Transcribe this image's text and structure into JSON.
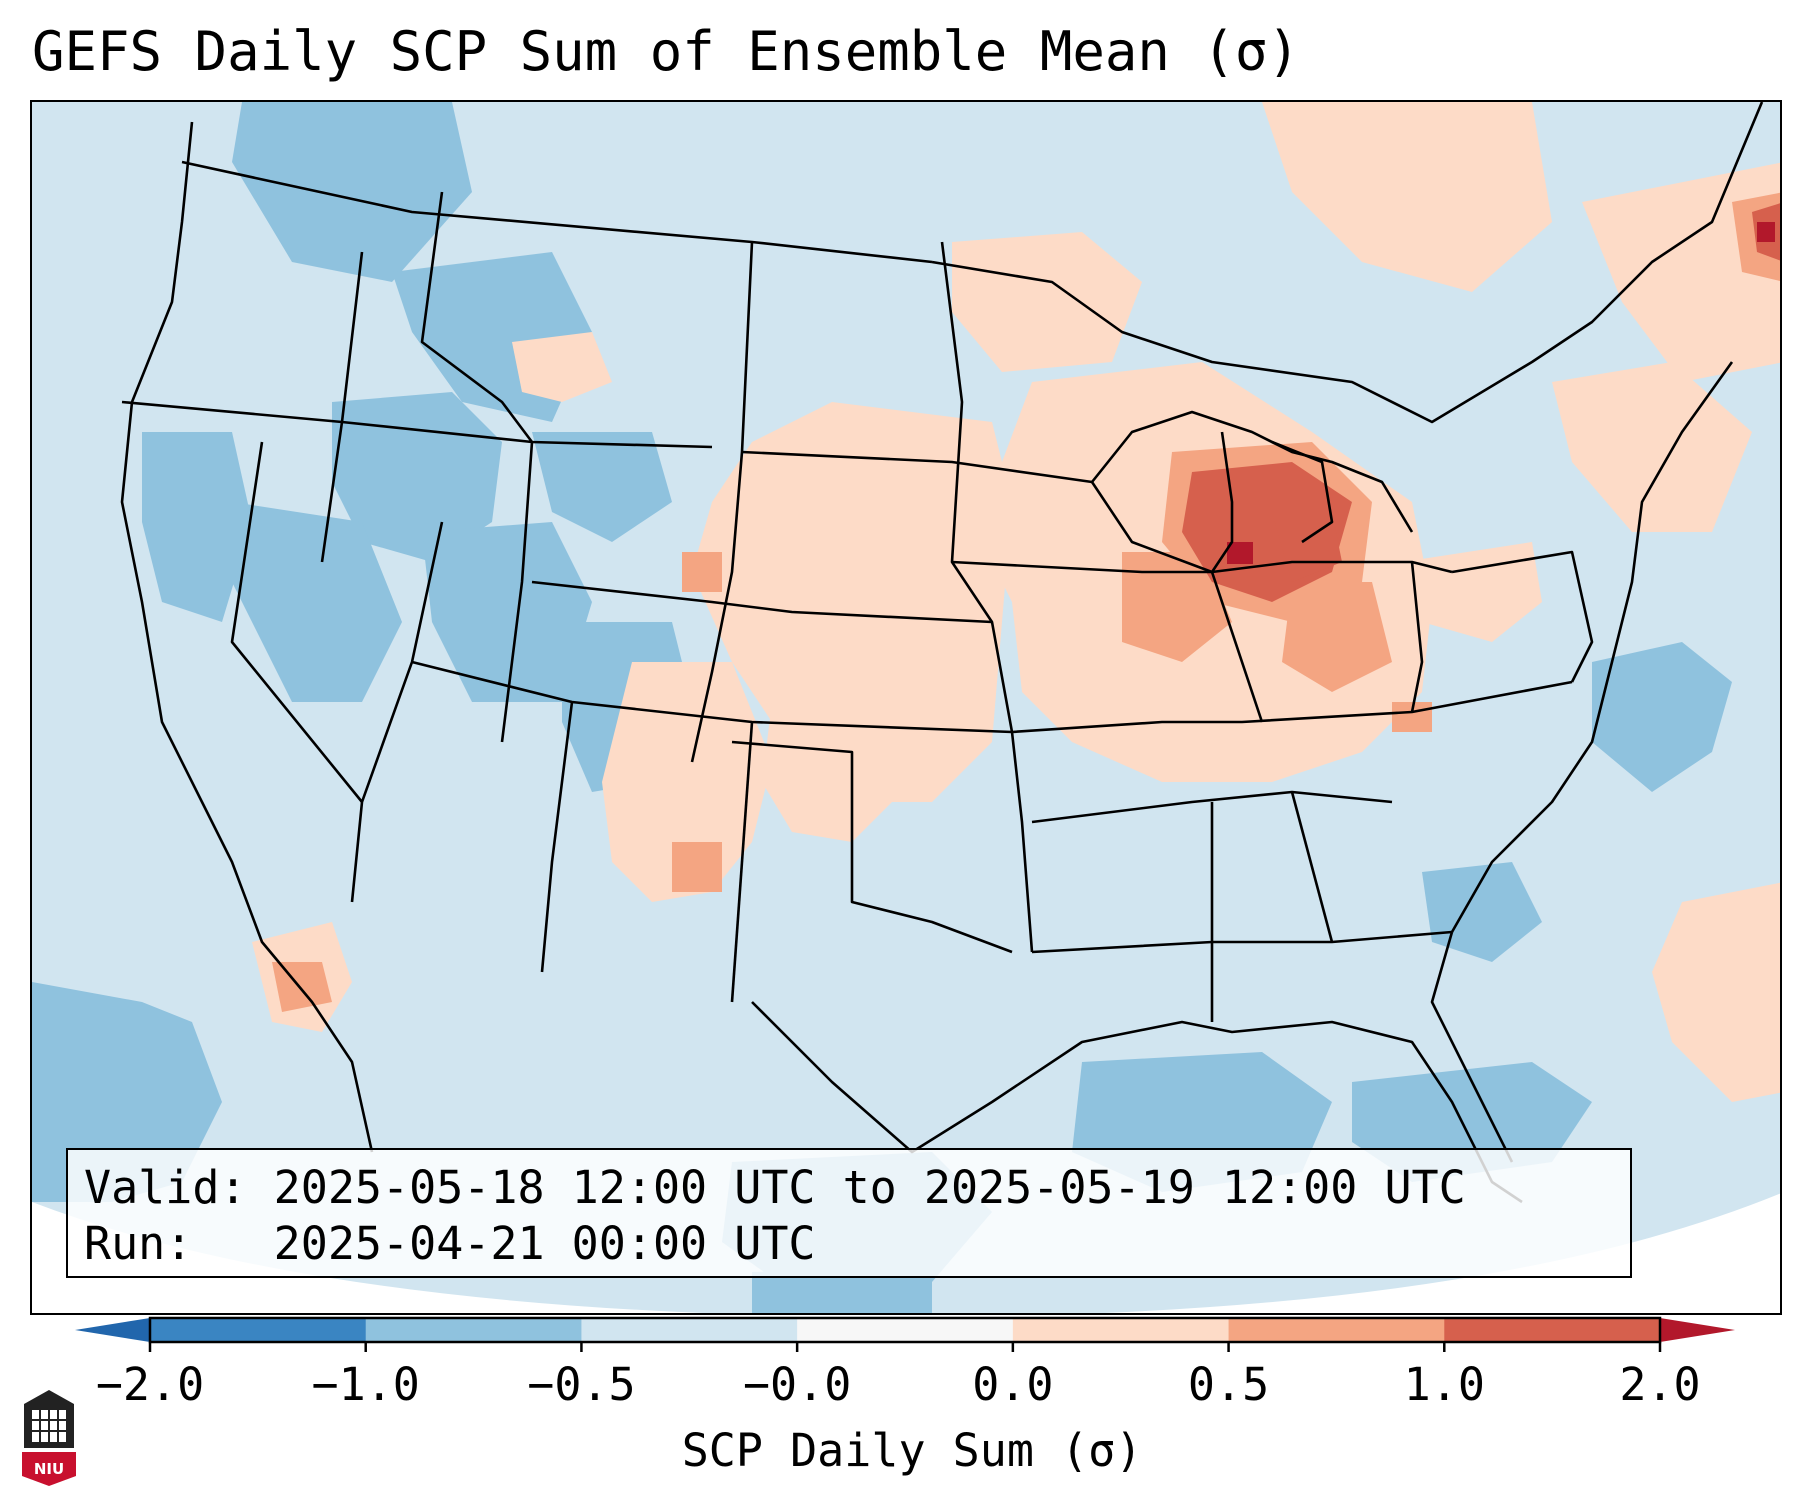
{
  "title": "GEFS Daily SCP Sum of Ensemble Mean (σ)",
  "info": {
    "valid_label": "Valid:",
    "valid_value": "2025-05-18 12:00 UTC to 2025-05-19 12:00 UTC",
    "run_label": "Run:  ",
    "run_value": "2025-04-21 00:00 UTC"
  },
  "colorbar": {
    "label": "SCP Daily Sum (σ)",
    "ticks": [
      "−2.0",
      "−1.0",
      "−0.5",
      "−0.0",
      "0.0",
      "0.5",
      "1.0",
      "2.0"
    ],
    "bin_colors": [
      "#3a85c2",
      "#8fc2de",
      "#d1e5f0",
      "#f7f7f7",
      "#fddbc7",
      "#f4a582",
      "#d6604d"
    ],
    "under_color": "#2166ac",
    "over_color": "#b2182b",
    "extend": "both"
  },
  "map": {
    "projection": "Lambert conformal, CONUS",
    "background_color": "#d1e5f0",
    "positive_anomaly_regions": [
      "Great Lakes",
      "Michigan",
      "Indiana",
      "Ohio",
      "Illinois",
      "Iowa",
      "Missouri",
      "Kansas",
      "Nebraska",
      "Oklahoma",
      "New Mexico",
      "Quebec",
      "Atlantic (east)"
    ],
    "strongest_anomaly_regions": [
      "Michigan",
      "northern Indiana"
    ],
    "negative_anomaly_regions": [
      "Pacific Northwest",
      "Nevada",
      "Utah",
      "Colorado",
      "Idaho",
      "Gulf of Mexico",
      "Atlantic off Carolinas"
    ]
  },
  "logo": {
    "text": "NIU",
    "color": "#c8102e"
  }
}
